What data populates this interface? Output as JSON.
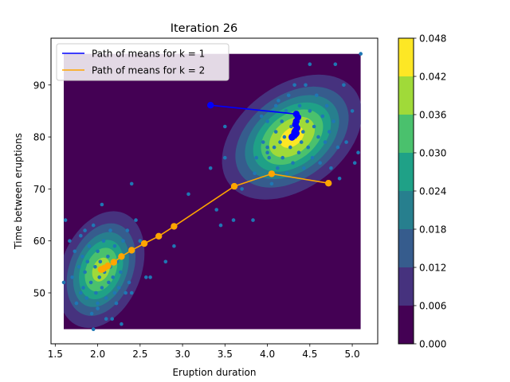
{
  "chart_data": {
    "type": "scatter",
    "title": "Iteration 26",
    "xlabel": "Eruption duration",
    "ylabel": "Time between eruptions",
    "xlim": [
      1.45,
      5.3
    ],
    "ylim": [
      40.2,
      99
    ],
    "xticks": [
      1.5,
      2.0,
      2.5,
      3.0,
      3.5,
      4.0,
      4.5,
      5.0
    ],
    "yticks": [
      50,
      60,
      70,
      80,
      90
    ],
    "grid": false,
    "legend_position": "top-left",
    "contour_extent": {
      "x": [
        1.6,
        5.1
      ],
      "y": [
        43,
        96
      ]
    },
    "colorbar": {
      "ticks": [
        "0.000",
        "0.006",
        "0.012",
        "0.018",
        "0.024",
        "0.030",
        "0.036",
        "0.042",
        "0.048"
      ],
      "levels": [
        0,
        0.006,
        0.012,
        0.018,
        0.024,
        0.03,
        0.036,
        0.042,
        0.048
      ],
      "colors": [
        "#440154",
        "#46327e",
        "#365c8d",
        "#277f8e",
        "#1fa187",
        "#4ac16d",
        "#a0da39",
        "#fde725"
      ]
    },
    "components": [
      {
        "mean": [
          4.29,
          79.97
        ],
        "cov": [
          [
            0.17,
            0.94
          ],
          [
            0.94,
            36.0
          ]
        ],
        "weight": 0.64
      },
      {
        "mean": [
          2.04,
          54.48
        ],
        "cov": [
          [
            0.07,
            0.44
          ],
          [
            0.44,
            33.7
          ]
        ],
        "weight": 0.36
      }
    ],
    "series": [
      {
        "name": "Path of means for k = 1",
        "color": "#0000ff",
        "x": [
          3.33,
          4.34,
          4.36,
          4.34,
          4.33,
          4.35,
          4.33,
          4.32,
          4.34,
          4.33,
          4.31,
          4.3,
          4.29,
          4.29,
          4.29
        ],
        "y": [
          86.1,
          84.4,
          83.8,
          83.0,
          82.4,
          81.7,
          81.2,
          80.9,
          80.7,
          80.5,
          80.3,
          80.1,
          80.0,
          80.0,
          79.9
        ]
      },
      {
        "name": "Path of means for k = 2",
        "color": "#ffa500",
        "x": [
          4.72,
          4.05,
          3.61,
          2.9,
          2.72,
          2.55,
          2.4,
          2.28,
          2.19,
          2.12,
          2.08,
          2.06,
          2.05,
          2.04
        ],
        "y": [
          71.1,
          72.9,
          70.5,
          62.8,
          60.9,
          59.5,
          58.2,
          57.0,
          55.9,
          55.2,
          54.8,
          54.6,
          54.5,
          54.5
        ]
      }
    ],
    "observations": {
      "color": "#1f77b4",
      "x": [
        1.6,
        1.62,
        1.67,
        1.7,
        1.73,
        1.75,
        1.78,
        1.8,
        1.8,
        1.82,
        1.83,
        1.85,
        1.85,
        1.87,
        1.88,
        1.9,
        1.92,
        1.93,
        1.95,
        1.97,
        1.98,
        2.0,
        2.0,
        2.02,
        2.03,
        2.05,
        2.07,
        2.08,
        2.1,
        2.12,
        2.13,
        2.15,
        2.17,
        2.18,
        2.2,
        2.22,
        2.23,
        2.25,
        2.27,
        2.28,
        2.3,
        2.33,
        2.35,
        2.37,
        2.4,
        2.42,
        2.45,
        2.5,
        2.62,
        2.8,
        1.95,
        2.0,
        2.05,
        2.1,
        2.15,
        2.2,
        2.4,
        2.9,
        3.07,
        3.33,
        3.4,
        3.5,
        3.6,
        3.83,
        3.85,
        3.95,
        4.0,
        4.02,
        4.05,
        4.07,
        4.08,
        4.1,
        4.12,
        4.13,
        4.15,
        4.17,
        4.18,
        4.2,
        4.22,
        4.23,
        4.25,
        4.27,
        4.28,
        4.3,
        4.32,
        4.33,
        4.35,
        4.37,
        4.38,
        4.4,
        4.42,
        4.43,
        4.45,
        4.47,
        4.48,
        4.5,
        4.53,
        4.55,
        4.58,
        4.6,
        4.62,
        4.65,
        4.68,
        4.7,
        4.73,
        4.75,
        4.78,
        4.8,
        4.83,
        4.85,
        4.9,
        4.93,
        5.0,
        5.03,
        5.07,
        5.1,
        3.7,
        3.87,
        3.93,
        4.0,
        4.5,
        3.5,
        3.45,
        4.0,
        2.57,
        4.1
      ],
      "y": [
        52,
        64,
        60,
        53,
        58,
        48,
        55,
        50,
        61,
        57,
        51,
        54,
        62,
        49,
        56,
        59,
        52,
        46,
        63,
        55,
        50,
        47,
        58,
        53,
        56,
        51,
        60,
        54,
        49,
        57,
        52,
        55,
        45,
        53,
        59,
        48,
        56,
        51,
        54,
        44,
        60,
        50,
        62,
        52,
        71,
        58,
        64,
        60,
        53,
        56,
        43,
        48,
        67,
        45,
        62,
        50,
        50,
        59,
        69,
        74,
        66,
        82,
        64,
        64,
        73,
        79,
        83,
        76,
        71,
        85,
        78,
        81,
        74,
        87,
        79,
        83,
        76,
        80,
        85,
        73,
        88,
        78,
        82,
        75,
        90,
        80,
        84,
        77,
        86,
        79,
        81,
        74,
        90,
        83,
        78,
        85,
        76,
        82,
        88,
        80,
        75,
        84,
        79,
        86,
        81,
        74,
        83,
        94,
        78,
        72,
        90,
        79,
        85,
        75,
        77,
        96,
        70,
        76,
        84,
        78,
        94,
        76,
        63,
        77,
        53,
        86
      ]
    }
  }
}
